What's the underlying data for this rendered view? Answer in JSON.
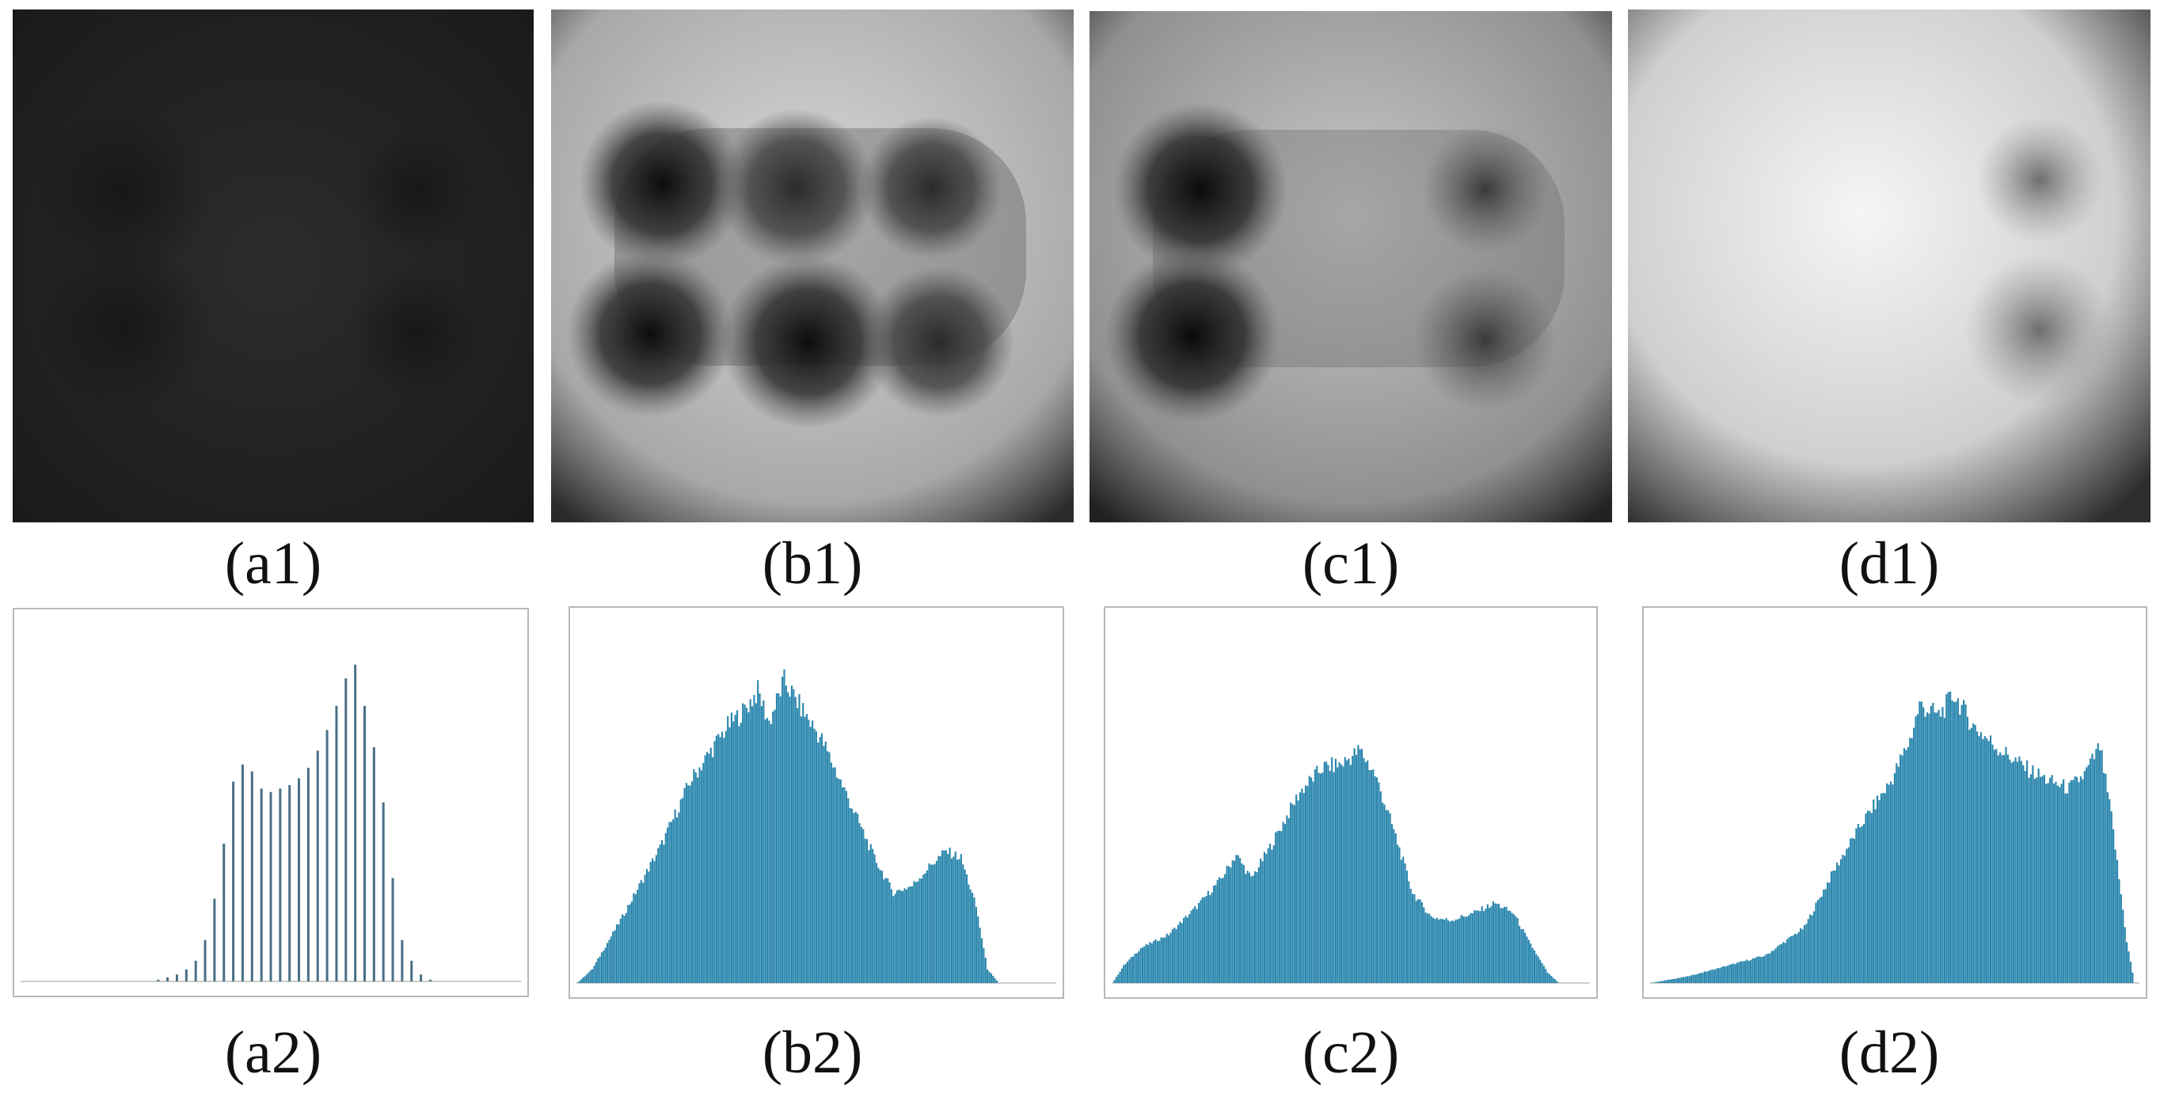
{
  "figure": {
    "panels": [
      {
        "id": "a1",
        "caption": "(a1)",
        "kind": "image",
        "tone": "very-dark"
      },
      {
        "id": "b1",
        "caption": "(b1)",
        "kind": "image",
        "tone": "bright-with-6-dark-spots"
      },
      {
        "id": "c1",
        "caption": "(c1)",
        "kind": "image",
        "tone": "bright-with-4-dark-spots"
      },
      {
        "id": "d1",
        "caption": "(d1)",
        "kind": "image",
        "tone": "bright-with-2-faint-spots"
      },
      {
        "id": "a2",
        "caption": "(a2)",
        "kind": "histogram"
      },
      {
        "id": "b2",
        "caption": "(b2)",
        "kind": "histogram"
      },
      {
        "id": "c2",
        "caption": "(c2)",
        "kind": "histogram"
      },
      {
        "id": "d2",
        "caption": "(d2)",
        "kind": "histogram"
      }
    ]
  },
  "chart_data": [
    {
      "id": "a2",
      "type": "bar",
      "color": "#4a6f86",
      "x": [
        44,
        47,
        50,
        53,
        56,
        59,
        62,
        65,
        68,
        71,
        74,
        77,
        80,
        83,
        86,
        89,
        92,
        95,
        98,
        101,
        104,
        107,
        110,
        113,
        116,
        119,
        122,
        125,
        128,
        131
      ],
      "values": [
        0.005,
        0.012,
        0.02,
        0.035,
        0.06,
        0.12,
        0.24,
        0.4,
        0.58,
        0.63,
        0.61,
        0.56,
        0.55,
        0.56,
        0.57,
        0.59,
        0.62,
        0.67,
        0.73,
        0.8,
        0.88,
        0.92,
        0.8,
        0.68,
        0.52,
        0.3,
        0.12,
        0.06,
        0.02,
        0.005
      ],
      "xlim": [
        0,
        160
      ],
      "ylim": [
        0,
        1
      ]
    },
    {
      "id": "b2",
      "type": "bar",
      "color": "#2a86ad",
      "x_range": [
        0,
        255
      ],
      "xlim": [
        0,
        255
      ],
      "ylim": [
        0,
        1
      ],
      "profile": [
        [
          0,
          0.0
        ],
        [
          8,
          0.04
        ],
        [
          25,
          0.2
        ],
        [
          45,
          0.4
        ],
        [
          60,
          0.58
        ],
        [
          70,
          0.66
        ],
        [
          80,
          0.74
        ],
        [
          88,
          0.78
        ],
        [
          96,
          0.84
        ],
        [
          102,
          0.75
        ],
        [
          110,
          0.87
        ],
        [
          118,
          0.8
        ],
        [
          130,
          0.7
        ],
        [
          145,
          0.52
        ],
        [
          158,
          0.36
        ],
        [
          168,
          0.26
        ],
        [
          178,
          0.28
        ],
        [
          188,
          0.34
        ],
        [
          196,
          0.38
        ],
        [
          204,
          0.36
        ],
        [
          212,
          0.22
        ],
        [
          218,
          0.04
        ],
        [
          224,
          0.0
        ]
      ]
    },
    {
      "id": "c2",
      "type": "bar",
      "color": "#2a86ad",
      "x_range": [
        0,
        255
      ],
      "xlim": [
        0,
        255
      ],
      "ylim": [
        0,
        1
      ],
      "profile": [
        [
          0,
          0.0
        ],
        [
          6,
          0.05
        ],
        [
          15,
          0.1
        ],
        [
          30,
          0.14
        ],
        [
          45,
          0.22
        ],
        [
          58,
          0.3
        ],
        [
          66,
          0.37
        ],
        [
          74,
          0.3
        ],
        [
          85,
          0.4
        ],
        [
          100,
          0.55
        ],
        [
          112,
          0.62
        ],
        [
          122,
          0.63
        ],
        [
          132,
          0.67
        ],
        [
          140,
          0.6
        ],
        [
          150,
          0.44
        ],
        [
          160,
          0.26
        ],
        [
          170,
          0.19
        ],
        [
          180,
          0.18
        ],
        [
          192,
          0.2
        ],
        [
          204,
          0.23
        ],
        [
          214,
          0.2
        ],
        [
          222,
          0.12
        ],
        [
          232,
          0.03
        ],
        [
          238,
          0.0
        ]
      ]
    },
    {
      "id": "d2",
      "type": "bar",
      "color": "#2a86ad",
      "x_range": [
        0,
        255
      ],
      "xlim": [
        0,
        255
      ],
      "ylim": [
        0,
        1
      ],
      "profile": [
        [
          0,
          0.0
        ],
        [
          20,
          0.02
        ],
        [
          40,
          0.05
        ],
        [
          60,
          0.08
        ],
        [
          80,
          0.16
        ],
        [
          95,
          0.32
        ],
        [
          110,
          0.46
        ],
        [
          125,
          0.58
        ],
        [
          135,
          0.7
        ],
        [
          140,
          0.8
        ],
        [
          150,
          0.77
        ],
        [
          158,
          0.83
        ],
        [
          168,
          0.74
        ],
        [
          180,
          0.68
        ],
        [
          195,
          0.62
        ],
        [
          208,
          0.58
        ],
        [
          218,
          0.56
        ],
        [
          226,
          0.6
        ],
        [
          234,
          0.68
        ],
        [
          240,
          0.48
        ],
        [
          248,
          0.12
        ],
        [
          252,
          0.0
        ]
      ]
    }
  ]
}
